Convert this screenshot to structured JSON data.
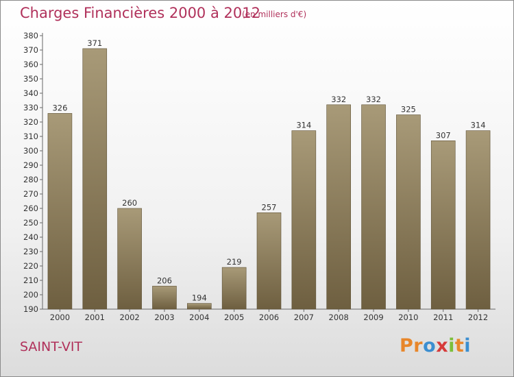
{
  "header": {
    "title": "Charges Financières 2000 à 2012",
    "subtitle": "(en milliers d'€)"
  },
  "footer": {
    "commune": "SAINT-VIT",
    "logo_text": "Proxiti",
    "logo_colors": [
      "#e8862a",
      "#e8862a",
      "#3b8ed0",
      "#d63a3a",
      "#7cbf3a",
      "#e8862a",
      "#3b8ed0"
    ]
  },
  "colors": {
    "accent": "#b0305a",
    "bar_top": "#a89a78",
    "bar_bottom": "#6e5f40"
  },
  "chart_data": {
    "type": "bar",
    "title": "Charges Financières 2000 à 2012",
    "subtitle": "(en milliers d'€)",
    "xlabel": "",
    "ylabel": "",
    "categories": [
      "2000",
      "2001",
      "2002",
      "2003",
      "2004",
      "2005",
      "2006",
      "2007",
      "2008",
      "2009",
      "2010",
      "2011",
      "2012"
    ],
    "values": [
      326,
      371,
      260,
      206,
      194,
      219,
      257,
      314,
      332,
      332,
      325,
      307,
      314
    ],
    "data_labels": [
      "326",
      "371",
      "260",
      "206",
      "194",
      "219",
      "257",
      "314",
      "332",
      "332",
      "325",
      "307",
      "314"
    ],
    "ylim": [
      190,
      380
    ],
    "yticks": [
      190,
      200,
      210,
      220,
      230,
      240,
      250,
      260,
      270,
      280,
      290,
      300,
      310,
      320,
      330,
      340,
      350,
      360,
      370,
      380
    ],
    "grid": false
  }
}
